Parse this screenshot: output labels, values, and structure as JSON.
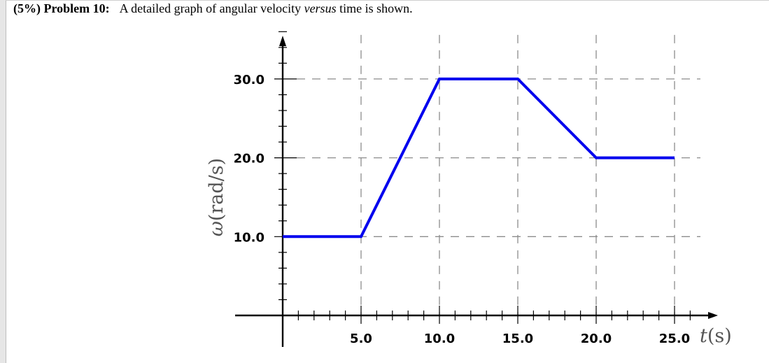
{
  "header": {
    "percent": "(5%)",
    "problem": "Problem 10:",
    "text_before": "A detailed graph of angular velocity ",
    "text_italic": "versus",
    "text_after": " time is shown."
  },
  "chart_data": {
    "type": "line",
    "title": "",
    "ylabel_symbol": "ω",
    "ylabel_unit": "(rad/s)",
    "xlabel_symbol": "t",
    "xlabel_unit": "(s)",
    "xlim": [
      0,
      25
    ],
    "ylim": [
      0,
      30
    ],
    "x_ticks": [
      5,
      10,
      15,
      20,
      25
    ],
    "x_tick_labels": [
      "5.0",
      "10.0",
      "15.0",
      "20.0",
      "25.0"
    ],
    "y_ticks": [
      10,
      20,
      30
    ],
    "y_tick_labels": [
      "10.0",
      "20.0",
      "30.0"
    ],
    "grid": "dashed",
    "series": [
      {
        "color": "#0000ee",
        "points": [
          [
            0,
            10
          ],
          [
            5,
            10
          ],
          [
            10,
            30
          ],
          [
            15,
            30
          ],
          [
            20,
            20
          ],
          [
            25,
            20
          ]
        ]
      }
    ]
  }
}
